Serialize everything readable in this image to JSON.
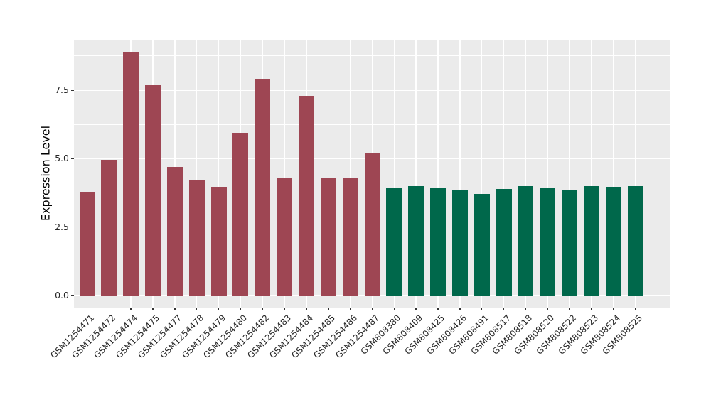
{
  "chart_data": {
    "type": "bar",
    "title": "",
    "xlabel": "",
    "ylabel": "Expression Level",
    "categories": [
      "GSM1254471",
      "GSM1254472",
      "GSM1254474",
      "GSM1254475",
      "GSM1254477",
      "GSM1254478",
      "GSM1254479",
      "GSM1254480",
      "GSM1254482",
      "GSM1254483",
      "GSM1254484",
      "GSM1254485",
      "GSM1254486",
      "GSM1254487",
      "GSM808380",
      "GSM808409",
      "GSM808425",
      "GSM808426",
      "GSM808491",
      "GSM808517",
      "GSM808518",
      "GSM808520",
      "GSM808522",
      "GSM808523",
      "GSM808524",
      "GSM808525"
    ],
    "values": [
      3.8,
      4.95,
      8.9,
      7.68,
      4.7,
      4.24,
      3.96,
      5.95,
      7.92,
      4.3,
      7.3,
      4.32,
      4.29,
      5.18,
      3.93,
      4.0,
      3.95,
      3.83,
      3.7,
      3.9,
      4.0,
      3.95,
      3.87,
      4.0,
      3.97,
      4.0
    ],
    "bar_colors": [
      "#9E4653",
      "#9E4653",
      "#9E4653",
      "#9E4653",
      "#9E4653",
      "#9E4653",
      "#9E4653",
      "#9E4653",
      "#9E4653",
      "#9E4653",
      "#9E4653",
      "#9E4653",
      "#9E4653",
      "#9E4653",
      "#00684B",
      "#00684B",
      "#00684B",
      "#00684B",
      "#00684B",
      "#00684B",
      "#00684B",
      "#00684B",
      "#00684B",
      "#00684B",
      "#00684B",
      "#00684B"
    ],
    "ylim": [
      -0.445,
      9.345
    ],
    "yticks": [
      0.0,
      2.5,
      5.0,
      7.5
    ],
    "ytick_labels": [
      "0.0",
      "2.5",
      "5.0",
      "7.5"
    ],
    "minor_yticks": [
      1.25,
      3.75,
      6.25,
      8.75
    ],
    "grid": "on",
    "legend_position": "none",
    "panel_background": "#EBEBEB",
    "major_grid_color": "#FFFFFF",
    "minor_grid_color": "#FFFFFF",
    "axis_text_color": "#262626",
    "tick_mark_color": "#333333"
  }
}
